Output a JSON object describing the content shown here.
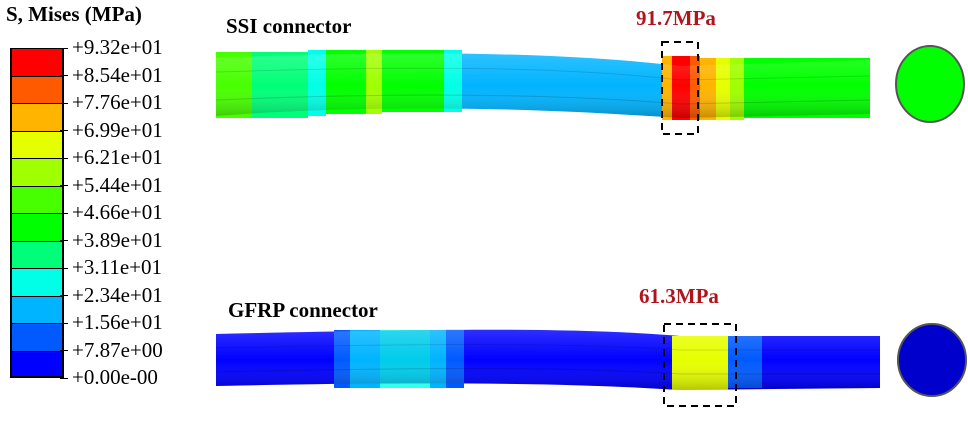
{
  "legend": {
    "title": "S, Mises (MPa)",
    "values": [
      "+9.32e+01",
      "+8.54e+01",
      "+7.76e+01",
      "+6.99e+01",
      "+6.21e+01",
      "+5.44e+01",
      "+4.66e+01",
      "+3.89e+01",
      "+3.11e+01",
      "+2.34e+01",
      "+1.56e+01",
      "+7.87e+00",
      "+0.00e-00"
    ],
    "colors": [
      "#ff0000",
      "#ff5a00",
      "#ffb400",
      "#e6ff00",
      "#a0ff00",
      "#48ff00",
      "#00ff00",
      "#00ff78",
      "#00ffe6",
      "#00b4ff",
      "#005aff",
      "#0000ff"
    ]
  },
  "cases": [
    {
      "title": "SSI connector",
      "max_stress_label": "91.7MPa"
    },
    {
      "title": "GFRP connector",
      "max_stress_label": "61.3MPa"
    }
  ]
}
